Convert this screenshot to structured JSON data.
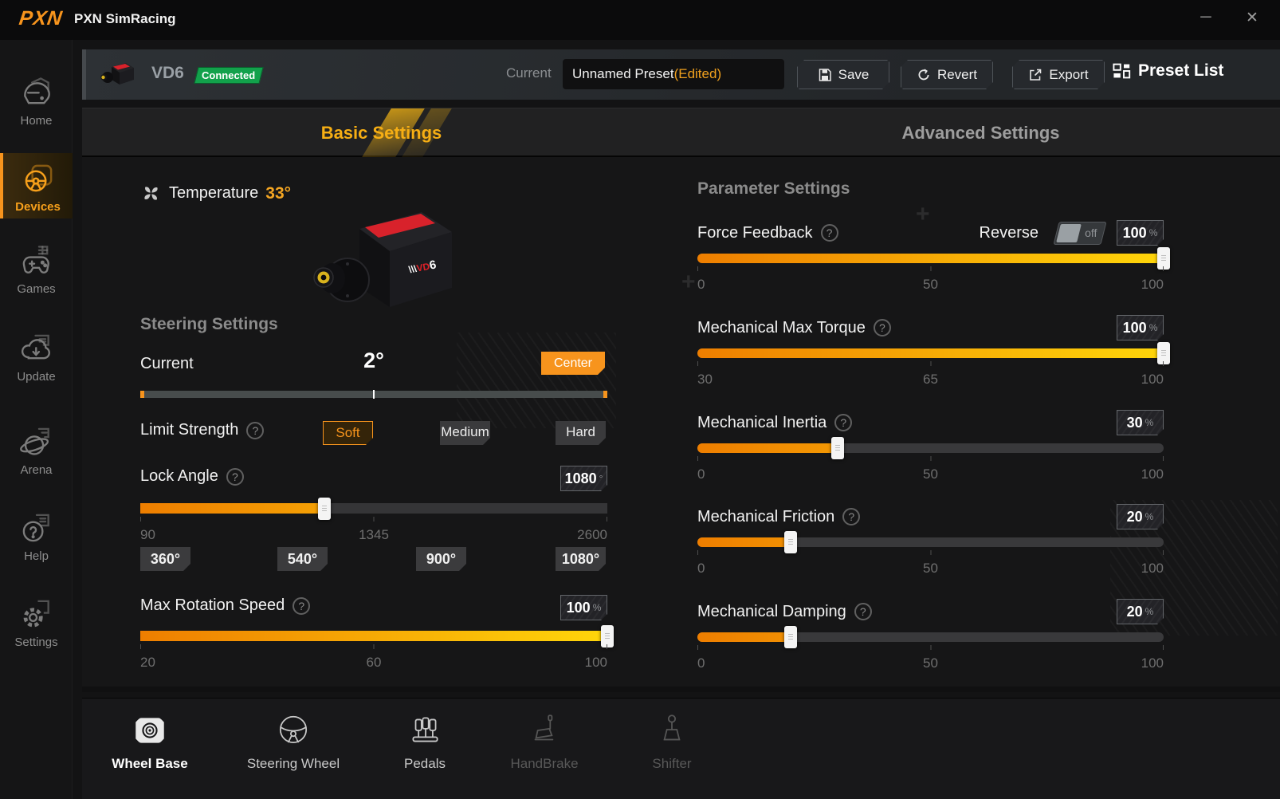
{
  "window": {
    "logo": "PXN",
    "title": "PXN SimRacing"
  },
  "icons": {
    "minimize": "─",
    "close": "✕",
    "question_mark": "?"
  },
  "sidebar": {
    "items": [
      {
        "label": "Home"
      },
      {
        "label": "Devices",
        "active": true
      },
      {
        "label": "Games"
      },
      {
        "label": "Update"
      },
      {
        "label": "Arena"
      },
      {
        "label": "Help"
      },
      {
        "label": "Settings"
      }
    ]
  },
  "device_bar": {
    "device_name": "VD6",
    "status": "Connected",
    "current_label": "Current",
    "preset_name": "Unnamed Preset",
    "preset_state": "(Edited)",
    "save_label": "Save",
    "revert_label": "Revert",
    "export_label": "Export",
    "preset_list_label": "Preset List"
  },
  "tabs": {
    "basic": "Basic Settings",
    "advanced": "Advanced Settings"
  },
  "temperature": {
    "label": "Temperature",
    "value": "33°"
  },
  "steering": {
    "header": "Steering Settings",
    "current_label": "Current",
    "current_value": "2°",
    "current_tick_pct": 50,
    "center_button": "Center",
    "limit_label": "Limit Strength",
    "limit_options": [
      "Soft",
      "Medium",
      "Hard"
    ],
    "limit_selected": "Soft",
    "lock_label": "Lock Angle",
    "lock_value": "1080",
    "lock_unit": "°",
    "lock_fill_pct": 39.4,
    "lock_ticks": [
      "90",
      "1345",
      "2600"
    ],
    "angle_presets": [
      "360°",
      "540°",
      "900°",
      "1080°"
    ],
    "speed_label": "Max Rotation Speed",
    "speed_value": "100",
    "speed_unit": "%",
    "speed_fill_pct": 100,
    "speed_ticks": [
      "20",
      "60",
      "100"
    ]
  },
  "parameters": {
    "header": "Parameter Settings",
    "reverse_label": "Reverse",
    "reverse_state": "off",
    "rows": [
      {
        "label": "Force Feedback",
        "value": "100",
        "unit": "%",
        "fill_pct": 100,
        "ticks": [
          "0",
          "50",
          "100"
        ]
      },
      {
        "label": "Mechanical Max Torque",
        "value": "100",
        "unit": "%",
        "fill_pct": 100,
        "ticks": [
          "30",
          "65",
          "100"
        ]
      },
      {
        "label": "Mechanical Inertia",
        "value": "30",
        "unit": "%",
        "fill_pct": 30,
        "ticks": [
          "0",
          "50",
          "100"
        ]
      },
      {
        "label": "Mechanical Friction",
        "value": "20",
        "unit": "%",
        "fill_pct": 20,
        "ticks": [
          "0",
          "50",
          "100"
        ]
      },
      {
        "label": "Mechanical Damping",
        "value": "20",
        "unit": "%",
        "fill_pct": 20,
        "ticks": [
          "0",
          "50",
          "100"
        ]
      }
    ]
  },
  "bottom_nav": {
    "items": [
      {
        "label": "Wheel Base",
        "active": true
      },
      {
        "label": "Steering Wheel"
      },
      {
        "label": "Pedals"
      },
      {
        "label": "HandBrake",
        "disabled": true
      },
      {
        "label": "Shifter",
        "disabled": true
      }
    ]
  },
  "colors": {
    "accent": "#f7941d",
    "connected_green": "#12a14b",
    "slider_start": "#ee7e00",
    "slider_end": "#ffd60a"
  }
}
